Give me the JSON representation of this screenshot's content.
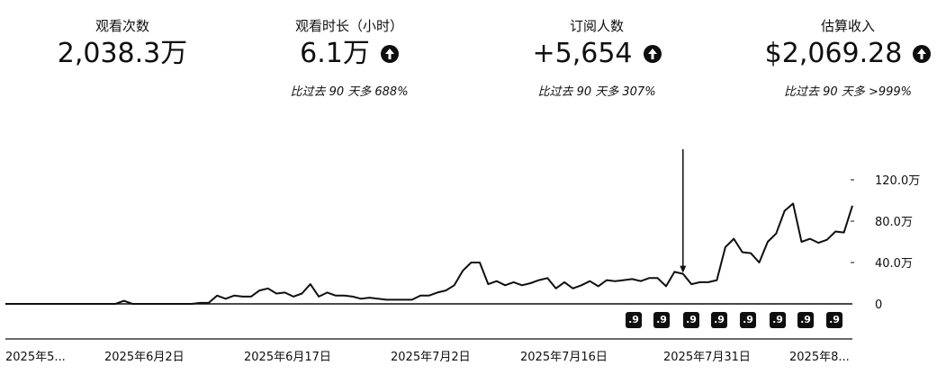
{
  "metrics": [
    {
      "label": "观看次数",
      "value": "2,038.3万",
      "compare": "",
      "trend_icon": ""
    },
    {
      "label": "观看时长（小时）",
      "value": "6.1万",
      "compare": "比过去 90 天多 688%",
      "trend_icon": "arrow-up-circle-icon"
    },
    {
      "label": "订阅人数",
      "value": "+5,654",
      "compare": "比过去 90 天多 307%",
      "trend_icon": "arrow-up-circle-icon"
    },
    {
      "label": "估算收入",
      "value": "$2,069.28",
      "compare": "比过去 90 天多 >999%",
      "trend_icon": "arrow-up-circle-icon"
    }
  ],
  "badges": {
    "label": ".9",
    "count": 8
  },
  "colors": {
    "line": "#0f0f0f",
    "baseline": "#0f0f0f",
    "badge_bg": "#0f0f0f"
  },
  "chart_data": {
    "type": "line",
    "y_ticks": [
      {
        "value": 0,
        "label": "0"
      },
      {
        "value": 40,
        "label": "40.0万"
      },
      {
        "value": 80,
        "label": "80.0万"
      },
      {
        "value": 120,
        "label": "120.0万"
      }
    ],
    "x_tick_labels": [
      "2025年5...",
      "2025年6月2日",
      "2025年6月17日",
      "2025年7月2日",
      "2025年7月16日",
      "2025年7月31日",
      "2025年8..."
    ],
    "ylim": [
      0,
      120
    ],
    "grid": false,
    "series": [
      {
        "values": [
          0,
          0,
          0,
          0,
          0,
          0,
          0,
          0,
          0,
          0,
          0,
          0,
          0,
          0,
          3,
          0,
          0,
          0,
          0,
          0,
          0,
          0,
          0,
          1,
          1,
          8,
          5,
          8,
          7,
          7,
          13,
          15,
          10,
          11,
          7,
          10,
          19,
          7,
          11,
          8,
          8,
          7,
          5,
          6,
          5,
          4,
          4,
          4,
          4,
          8,
          8,
          11,
          13,
          18,
          32,
          40,
          40,
          19,
          22,
          18,
          21,
          18,
          20,
          23,
          25,
          15,
          21,
          15,
          18,
          22,
          17,
          23,
          22,
          23,
          24,
          22,
          25,
          25,
          17,
          31,
          29,
          19,
          21,
          21,
          23,
          55,
          63,
          50,
          49,
          40,
          60,
          68,
          90,
          97,
          60,
          63,
          59,
          62,
          70,
          69,
          95
        ],
        "spike": {
          "index": 80,
          "value": 150
        }
      }
    ]
  }
}
